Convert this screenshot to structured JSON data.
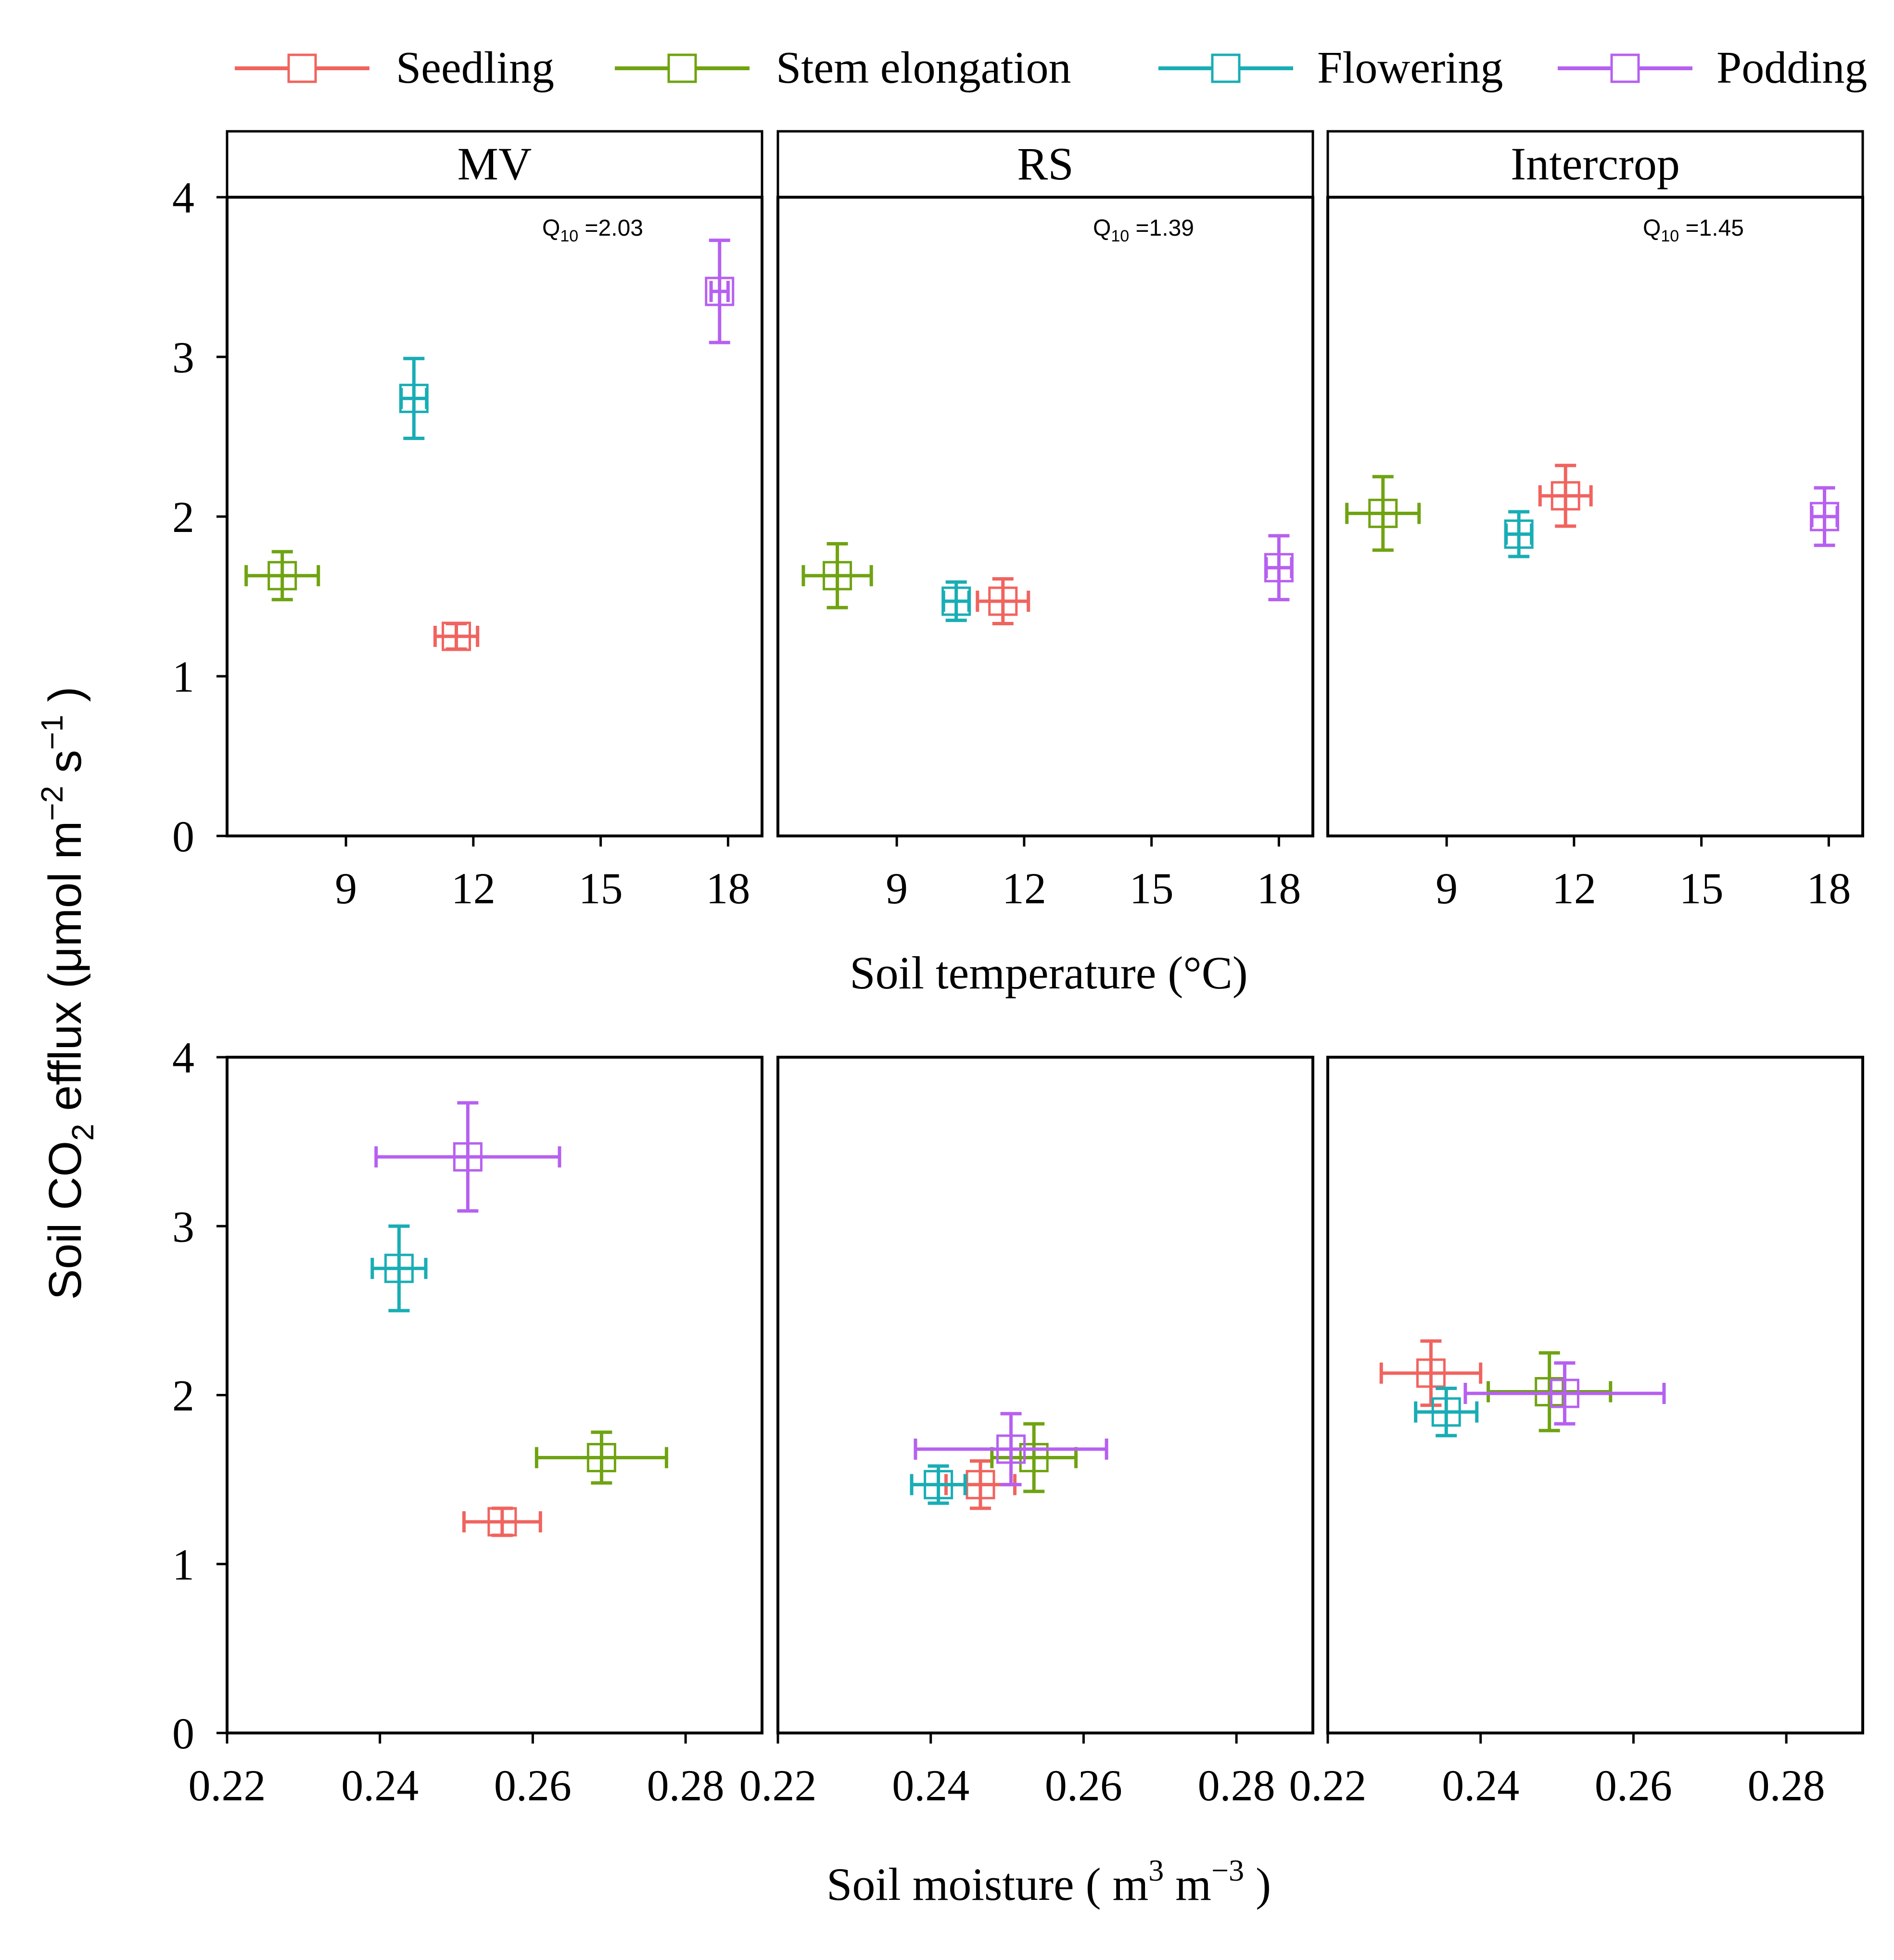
{
  "chart_data": {
    "type": "scatter",
    "legend": {
      "placement": "top",
      "entries": [
        {
          "key": "seedling",
          "label": "Seedling",
          "color": "#F0645F"
        },
        {
          "key": "stem",
          "label": "Stem elongation",
          "color": "#6FA312"
        },
        {
          "key": "flowering",
          "label": "Flowering",
          "color": "#19ADB5"
        },
        {
          "key": "podding",
          "label": "Podding",
          "color": "#B660F0"
        }
      ]
    },
    "ylabel": "Soil CO2 efflux (μmol m−2 s−1 )",
    "ylabel_parts": {
      "pre": "Soil CO",
      "sub": "2",
      "mid": " efflux (μmol m",
      "sup1": "−2",
      "mid2": " s",
      "sup2": "−1",
      "post": " )"
    },
    "ylim": [
      0,
      4
    ],
    "yticks": [
      "0",
      "1",
      "2",
      "3",
      "4"
    ],
    "panels": [
      "MV",
      "RS",
      "Intercrop"
    ],
    "q10": [
      "=2.03",
      "=1.39",
      "=1.45"
    ],
    "q10_prefix": "Q",
    "q10_sub": "10",
    "temperature": {
      "xlabel": "Soil temperature (°C)",
      "xlim": [
        6.2,
        18.8
      ],
      "xticks": [
        "9",
        "12",
        "15",
        "18"
      ],
      "xtick_values": [
        9,
        12,
        15,
        18
      ],
      "series": [
        {
          "panel": "MV",
          "points": [
            {
              "stage": "seedling",
              "x": 11.6,
              "xerr": 0.5,
              "y": 1.25,
              "yerr": 0.08
            },
            {
              "stage": "stem",
              "x": 7.5,
              "xerr": 0.85,
              "y": 1.63,
              "yerr": 0.15
            },
            {
              "stage": "flowering",
              "x": 10.6,
              "xerr": 0.3,
              "y": 2.74,
              "yerr": 0.25
            },
            {
              "stage": "podding",
              "x": 17.8,
              "xerr": 0.2,
              "y": 3.41,
              "yerr": 0.32
            }
          ]
        },
        {
          "panel": "RS",
          "points": [
            {
              "stage": "seedling",
              "x": 11.5,
              "xerr": 0.6,
              "y": 1.47,
              "yerr": 0.14
            },
            {
              "stage": "stem",
              "x": 7.6,
              "xerr": 0.8,
              "y": 1.63,
              "yerr": 0.2
            },
            {
              "stage": "flowering",
              "x": 10.4,
              "xerr": 0.3,
              "y": 1.47,
              "yerr": 0.12
            },
            {
              "stage": "podding",
              "x": 18.0,
              "xerr": 0.3,
              "y": 1.68,
              "yerr": 0.2
            }
          ]
        },
        {
          "panel": "Intercrop",
          "points": [
            {
              "stage": "seedling",
              "x": 11.8,
              "xerr": 0.6,
              "y": 2.13,
              "yerr": 0.19
            },
            {
              "stage": "stem",
              "x": 7.5,
              "xerr": 0.85,
              "y": 2.02,
              "yerr": 0.23
            },
            {
              "stage": "flowering",
              "x": 10.7,
              "xerr": 0.3,
              "y": 1.89,
              "yerr": 0.14
            },
            {
              "stage": "podding",
              "x": 17.9,
              "xerr": 0.3,
              "y": 2.0,
              "yerr": 0.18
            }
          ]
        }
      ]
    },
    "moisture": {
      "xlabel": "Soil moisture ( m3 m−3 )",
      "xlabel_parts": {
        "pre": "Soil moisture ( m",
        "sup1": "3",
        "mid": " m",
        "sup2": "−3",
        "post": " )"
      },
      "xlim": [
        0.22,
        0.29
      ],
      "xticks": [
        "0.22",
        "0.24",
        "0.26",
        "0.28"
      ],
      "xtick_values": [
        0.22,
        0.24,
        0.26,
        0.28
      ],
      "series": [
        {
          "panel": "MV",
          "points": [
            {
              "stage": "seedling",
              "x": 0.256,
              "xerr": 0.005,
              "y": 1.25,
              "yerr": 0.08
            },
            {
              "stage": "stem",
              "x": 0.269,
              "xerr": 0.0085,
              "y": 1.63,
              "yerr": 0.15
            },
            {
              "stage": "flowering",
              "x": 0.2425,
              "xerr": 0.0035,
              "y": 2.75,
              "yerr": 0.25
            },
            {
              "stage": "podding",
              "x": 0.2515,
              "xerr": 0.012,
              "y": 3.41,
              "yerr": 0.32
            }
          ]
        },
        {
          "panel": "RS",
          "points": [
            {
              "stage": "seedling",
              "x": 0.2465,
              "xerr": 0.0045,
              "y": 1.47,
              "yerr": 0.14
            },
            {
              "stage": "stem",
              "x": 0.2535,
              "xerr": 0.0055,
              "y": 1.63,
              "yerr": 0.2
            },
            {
              "stage": "flowering",
              "x": 0.241,
              "xerr": 0.0035,
              "y": 1.47,
              "yerr": 0.11
            },
            {
              "stage": "podding",
              "x": 0.2505,
              "xerr": 0.0125,
              "y": 1.68,
              "yerr": 0.21
            }
          ]
        },
        {
          "panel": "Intercrop",
          "points": [
            {
              "stage": "seedling",
              "x": 0.2335,
              "xerr": 0.0065,
              "y": 2.13,
              "yerr": 0.19
            },
            {
              "stage": "stem",
              "x": 0.249,
              "xerr": 0.008,
              "y": 2.02,
              "yerr": 0.23
            },
            {
              "stage": "flowering",
              "x": 0.2355,
              "xerr": 0.004,
              "y": 1.9,
              "yerr": 0.14
            },
            {
              "stage": "podding",
              "x": 0.251,
              "xerr": 0.013,
              "y": 2.01,
              "yerr": 0.18
            }
          ]
        }
      ]
    }
  }
}
